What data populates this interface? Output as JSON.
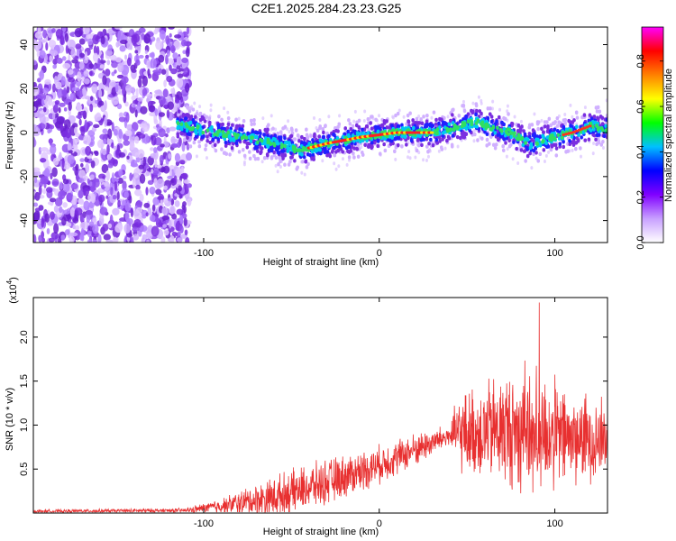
{
  "title": "C2E1.2025.284.23.23.G25",
  "chart_data": [
    {
      "type": "heatmap",
      "name": "spectrogram",
      "xlabel": "Height of straight line (km)",
      "ylabel": "Frequency (Hz)",
      "xlim": [
        -197,
        130
      ],
      "ylim": [
        -50,
        48
      ],
      "xticks": [
        -100,
        0,
        100
      ],
      "yticks": [
        -40,
        -20,
        0,
        20,
        40
      ],
      "noise_region_xmax": -108,
      "signal_start_x": -115,
      "ridge": [
        {
          "x": -115,
          "f": 4
        },
        {
          "x": -100,
          "f": 1
        },
        {
          "x": -80,
          "f": -2
        },
        {
          "x": -60,
          "f": -5
        },
        {
          "x": -45,
          "f": -8
        },
        {
          "x": -30,
          "f": -5
        },
        {
          "x": -10,
          "f": -2
        },
        {
          "x": 10,
          "f": 0
        },
        {
          "x": 30,
          "f": 0
        },
        {
          "x": 45,
          "f": 3
        },
        {
          "x": 55,
          "f": 5
        },
        {
          "x": 65,
          "f": 2
        },
        {
          "x": 75,
          "f": 0
        },
        {
          "x": 85,
          "f": -5
        },
        {
          "x": 95,
          "f": -3
        },
        {
          "x": 110,
          "f": 0
        },
        {
          "x": 120,
          "f": 3
        },
        {
          "x": 130,
          "f": 2
        }
      ],
      "colorbar": {
        "label": "Normalized spectral amplitude",
        "ticks": [
          "0.0",
          "0.2",
          "0.4",
          "0.6",
          "0.8"
        ],
        "range": [
          0,
          0.95
        ],
        "colors": [
          "#ffffff",
          "#c8a0ff",
          "#8000ff",
          "#0000ff",
          "#00c0ff",
          "#00ff00",
          "#ffff00",
          "#ff8000",
          "#ff0000",
          "#ff00ff"
        ]
      }
    },
    {
      "type": "line",
      "name": "snr",
      "xlabel": "Height of straight line (km)",
      "ylabel": "SNR (10 * v/v)",
      "scale_label": "(x10",
      "scale_exp": "4",
      "xlim": [
        -197,
        130
      ],
      "ylim": [
        0,
        2.45
      ],
      "xticks": [
        -100,
        0,
        100
      ],
      "yticks": [
        "0.5",
        "1.0",
        "1.5",
        "2.0"
      ],
      "envelope": [
        {
          "x": -197,
          "base": 0.02,
          "spread": 0.02
        },
        {
          "x": -110,
          "base": 0.03,
          "spread": 0.03
        },
        {
          "x": -90,
          "base": 0.08,
          "spread": 0.1
        },
        {
          "x": -60,
          "base": 0.18,
          "spread": 0.28
        },
        {
          "x": -30,
          "base": 0.35,
          "spread": 0.3
        },
        {
          "x": 0,
          "base": 0.55,
          "spread": 0.25
        },
        {
          "x": 20,
          "base": 0.72,
          "spread": 0.22
        },
        {
          "x": 40,
          "base": 0.88,
          "spread": 0.15
        },
        {
          "x": 45,
          "base": 0.9,
          "spread": 0.5
        },
        {
          "x": 70,
          "base": 0.95,
          "spread": 0.75
        },
        {
          "x": 90,
          "base": 0.92,
          "spread": 0.85
        },
        {
          "x": 110,
          "base": 0.85,
          "spread": 0.6
        },
        {
          "x": 130,
          "base": 0.85,
          "spread": 0.55
        }
      ],
      "line_color": "#e83030"
    }
  ]
}
